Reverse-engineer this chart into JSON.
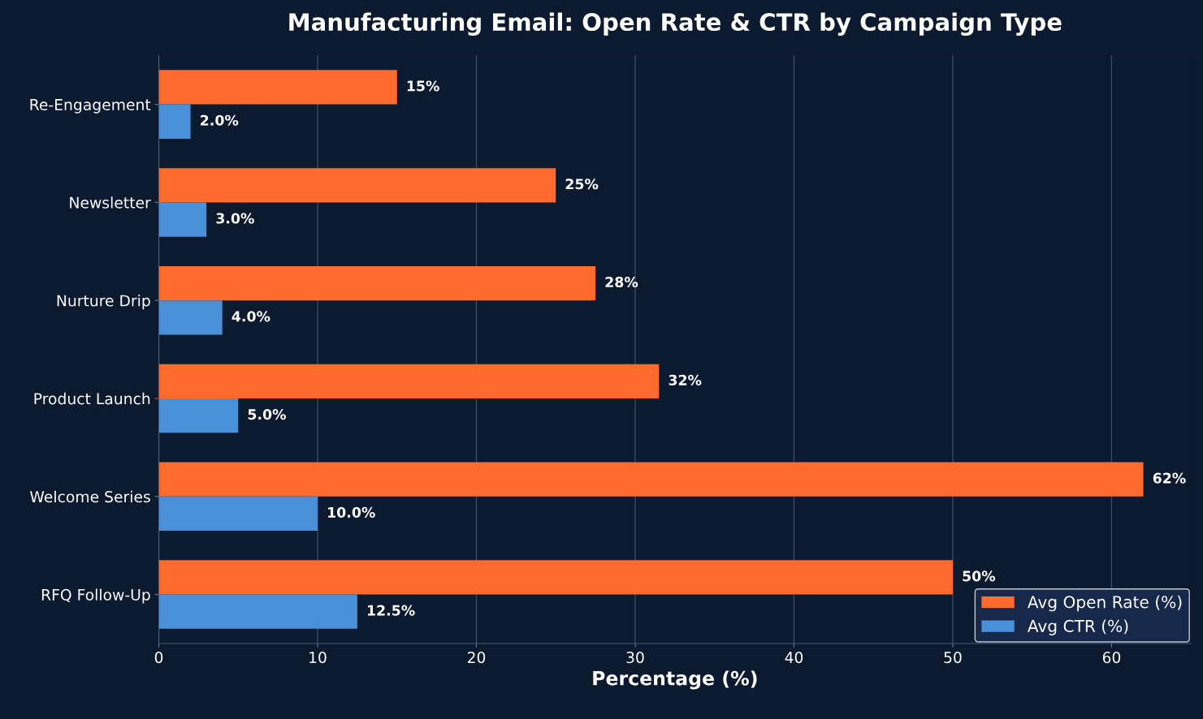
{
  "chart_data": {
    "type": "bar",
    "orientation": "horizontal",
    "title": "Manufacturing Email: Open Rate & CTR by Campaign Type",
    "xlabel": "Percentage (%)",
    "categories": [
      "Re-Engagement",
      "Newsletter",
      "Nurture Drip",
      "Product Launch",
      "Welcome Series",
      "RFQ Follow-Up"
    ],
    "series": [
      {
        "name": "Avg Open Rate (%)",
        "color": "#ff6b2c",
        "values": [
          15,
          25,
          27.5,
          31.5,
          62,
          50
        ],
        "value_labels": [
          "15%",
          "25%",
          "28%",
          "32%",
          "62%",
          "50%"
        ]
      },
      {
        "name": "Avg CTR (%)",
        "color": "#4a90d9",
        "values": [
          2.0,
          3.0,
          4.0,
          5.0,
          10.0,
          12.5
        ],
        "value_labels": [
          "2.0%",
          "3.0%",
          "4.0%",
          "5.0%",
          "10.0%",
          "12.5%"
        ]
      }
    ],
    "xlim": [
      0,
      65
    ],
    "xticks": [
      0,
      10,
      20,
      30,
      40,
      50,
      60
    ],
    "grid": "x",
    "legend": "bottom right"
  }
}
